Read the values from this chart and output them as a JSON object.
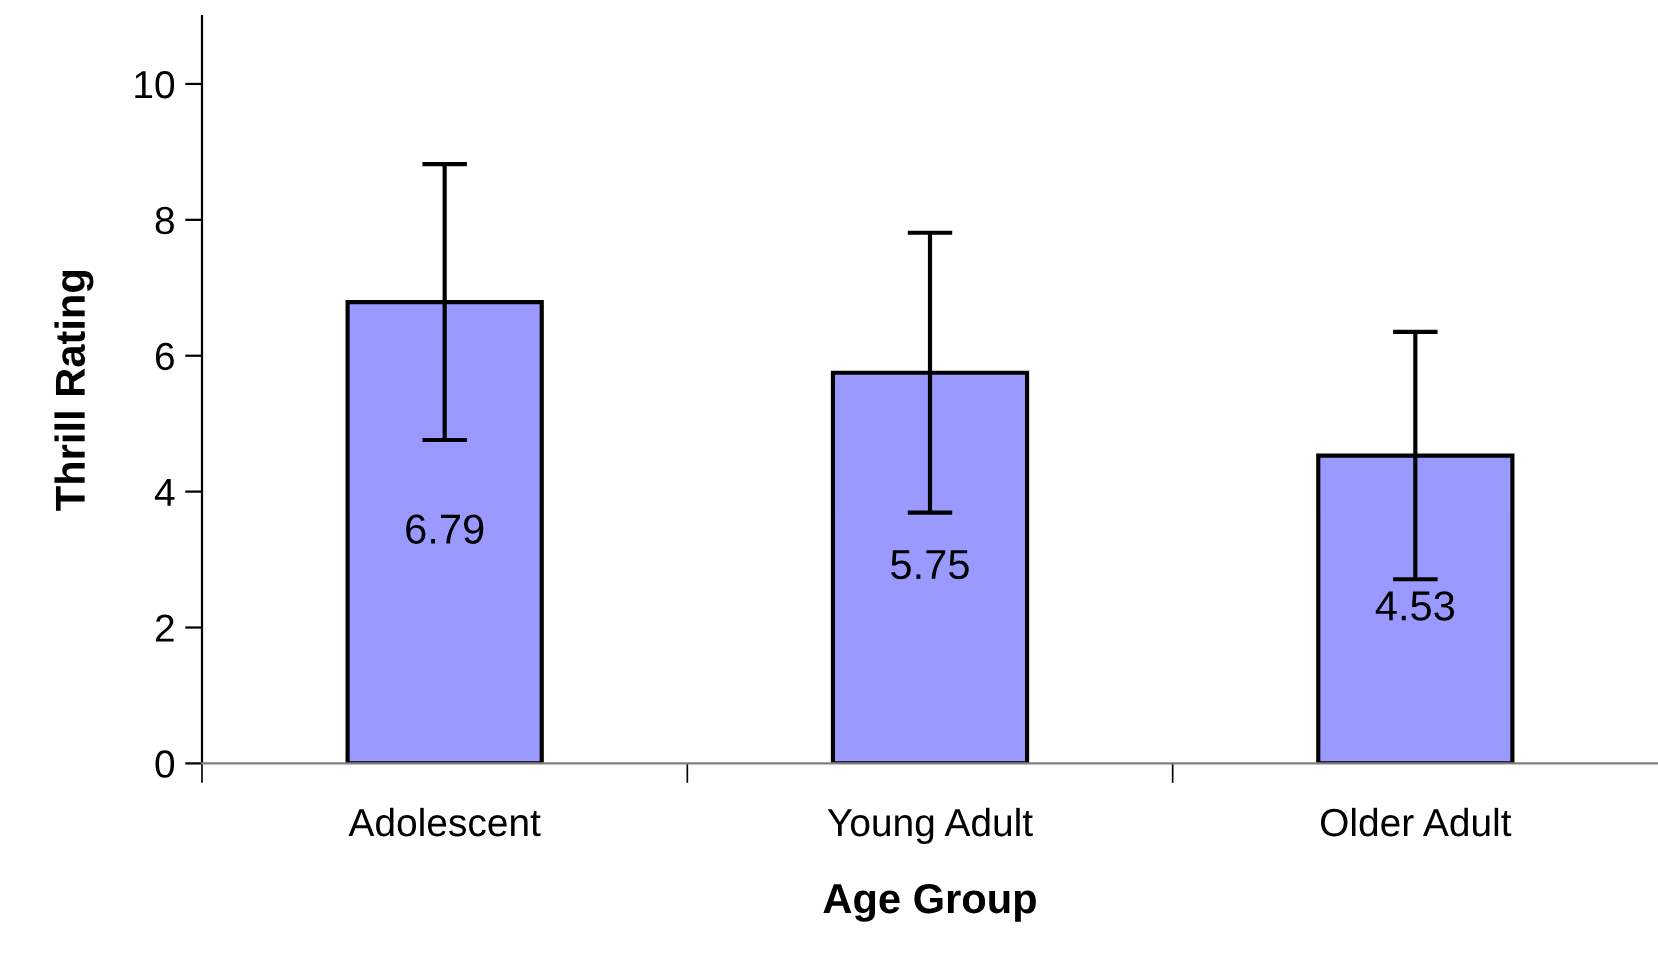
{
  "chart_data": {
    "type": "bar",
    "xlabel": "Age Group",
    "ylabel": "Thrill Rating",
    "categories": [
      "Adolescent",
      "Young Adult",
      "Older Adult"
    ],
    "values": [
      6.79,
      5.75,
      4.53
    ],
    "errors": [
      2.03,
      2.06,
      1.82
    ],
    "color": "#9999ff",
    "data_labels": true,
    "ylim": [
      0,
      11
    ],
    "yticks": [
      0,
      2,
      4,
      6,
      8,
      10
    ],
    "grid": false,
    "legend": false
  }
}
